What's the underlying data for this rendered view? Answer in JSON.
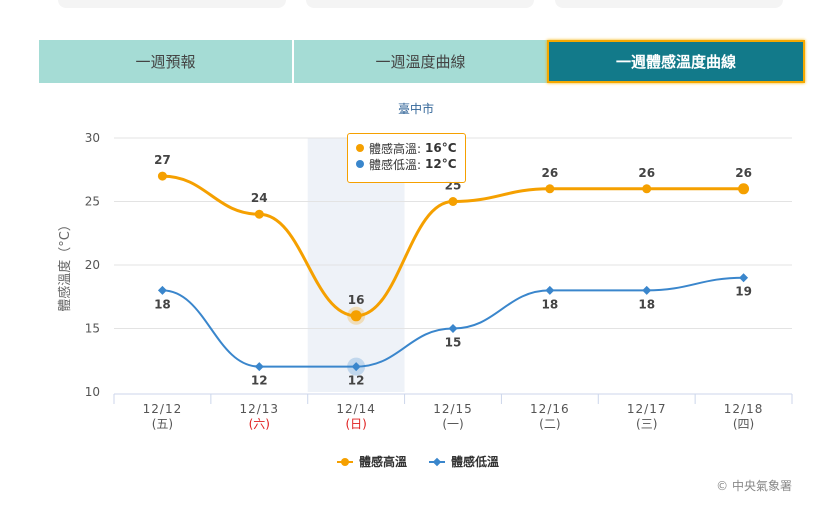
{
  "tabs": [
    {
      "label": "一週預報",
      "active": false
    },
    {
      "label": "一週溫度曲線",
      "active": false
    },
    {
      "label": "一週體感溫度曲線",
      "active": true
    }
  ],
  "colors": {
    "tab_bg": "#a5dcd5",
    "tab_active_bg": "#127a8a",
    "tab_active_border": "#f5a800",
    "high_series": "#f5a000",
    "low_series": "#3a86cc",
    "weekend_label": "#e02020",
    "title": "#336699"
  },
  "tooltip": {
    "high_label": "體感高溫:",
    "high_value": "16°C",
    "low_label": "體感低溫:",
    "low_value": "12°C"
  },
  "legend": {
    "high": "體感高溫",
    "low": "體感低溫"
  },
  "credit": "© 中央氣象署",
  "chart_data": {
    "type": "line",
    "title": "臺中市",
    "xlabel": "",
    "ylabel": "體感溫度（°C）",
    "ylim": [
      10,
      30
    ],
    "yticks": [
      "10",
      "15",
      "20",
      "25",
      "30"
    ],
    "categories": [
      "12/12",
      "12/13",
      "12/14",
      "12/15",
      "12/16",
      "12/17",
      "12/18"
    ],
    "weekdays": [
      "(五)",
      "(六)",
      "(日)",
      "(一)",
      "(二)",
      "(三)",
      "(四)"
    ],
    "weekend": [
      false,
      true,
      true,
      false,
      false,
      false,
      false
    ],
    "highlighted_index": 2,
    "grid": true,
    "legend_position": "bottom",
    "series": [
      {
        "name": "體感高溫",
        "values": [
          27,
          24,
          16,
          25,
          26,
          26,
          26
        ],
        "marker": "circle"
      },
      {
        "name": "體感低溫",
        "values": [
          18,
          12,
          12,
          15,
          18,
          18,
          19
        ],
        "marker": "diamond"
      }
    ]
  }
}
